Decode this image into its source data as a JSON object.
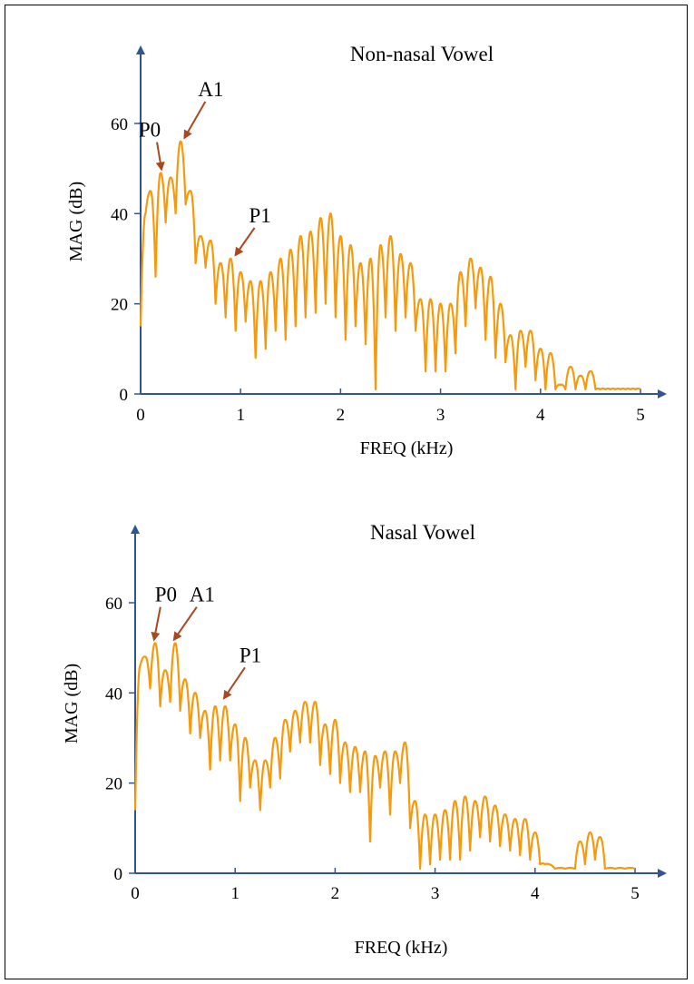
{
  "colors": {
    "spectrum": "#F59A0C",
    "axis": "#2F5597",
    "arrow": "#A8481F",
    "frame": "#000000"
  },
  "chart_data": [
    {
      "type": "line",
      "title": "Non-nasal Vowel",
      "xlabel": "FREQ (kHz)",
      "ylabel": "MAG (dB)",
      "xlim": [
        0,
        5
      ],
      "ylim": [
        0,
        60
      ],
      "xticks": [
        "0",
        "1",
        "2",
        "3",
        "4",
        "5"
      ],
      "yticks": [
        "0",
        "20",
        "40",
        "60"
      ],
      "grid": false,
      "annotations": [
        {
          "label": "P0",
          "x": 0.2,
          "y": 49
        },
        {
          "label": "A1",
          "x": 0.43,
          "y": 56
        },
        {
          "label": "P1",
          "x": 0.94,
          "y": 30
        }
      ],
      "series": [
        {
          "x": [
            0,
            0.05,
            0.1,
            0.15,
            0.2,
            0.25,
            0.3,
            0.35,
            0.4,
            0.45,
            0.5,
            0.55,
            0.6,
            0.65,
            0.7,
            0.75,
            0.8,
            0.85,
            0.9,
            0.95,
            1.0,
            1.05,
            1.1,
            1.15,
            1.2,
            1.25,
            1.3,
            1.35,
            1.4,
            1.45,
            1.5,
            1.55,
            1.6,
            1.65,
            1.7,
            1.75,
            1.8,
            1.85,
            1.9,
            1.95,
            2.0,
            2.05,
            2.1,
            2.15,
            2.2,
            2.25,
            2.3,
            2.35,
            2.4,
            2.45,
            2.5,
            2.55,
            2.6,
            2.65,
            2.7,
            2.75,
            2.8,
            2.85,
            2.9,
            2.95,
            3.0,
            3.05,
            3.1,
            3.15,
            3.2,
            3.25,
            3.3,
            3.35,
            3.4,
            3.45,
            3.5,
            3.55,
            3.6,
            3.65,
            3.7,
            3.75,
            3.8,
            3.85,
            3.9,
            3.95,
            4.0,
            4.05,
            4.1,
            4.15,
            4.2,
            4.25,
            4.3,
            4.35,
            4.4,
            4.45,
            4.5,
            4.55,
            4.6,
            4.65,
            4.7,
            4.75,
            4.8,
            4.85,
            4.9,
            4.95,
            5.0
          ],
          "y": [
            15,
            40,
            45,
            26,
            49,
            38,
            48,
            40,
            56,
            42,
            45,
            29,
            35,
            28,
            34,
            20,
            29,
            17,
            30,
            14,
            27,
            16,
            25,
            8,
            25,
            10,
            27,
            14,
            30,
            12,
            32,
            15,
            35,
            17,
            36,
            18,
            39,
            20,
            40,
            17,
            35,
            12,
            33,
            15,
            29,
            11,
            30,
            1,
            33,
            17,
            35,
            14,
            31,
            17,
            29,
            14,
            21,
            5,
            21,
            5,
            20,
            5,
            20,
            9,
            27,
            15,
            30,
            19,
            28,
            12,
            26,
            8,
            20,
            7,
            13,
            1,
            14,
            6,
            14,
            3,
            10,
            1,
            9,
            1,
            2,
            1,
            6,
            1,
            4,
            1,
            5,
            1,
            1,
            1,
            1,
            1,
            1,
            1,
            1,
            1,
            1
          ]
        }
      ]
    },
    {
      "type": "line",
      "title": "Nasal Vowel",
      "xlabel": "FREQ (kHz)",
      "ylabel": "MAG (dB)",
      "xlim": [
        0,
        5
      ],
      "ylim": [
        0,
        60
      ],
      "xticks": [
        "0",
        "1",
        "2",
        "3",
        "4",
        "5"
      ],
      "yticks": [
        "0",
        "20",
        "40",
        "60"
      ],
      "grid": false,
      "annotations": [
        {
          "label": "P0",
          "x": 0.18,
          "y": 51
        },
        {
          "label": "A1",
          "x": 0.38,
          "y": 51
        },
        {
          "label": "P1",
          "x": 0.88,
          "y": 38
        }
      ],
      "series": [
        {
          "x": [
            0,
            0.05,
            0.1,
            0.15,
            0.2,
            0.25,
            0.3,
            0.35,
            0.4,
            0.45,
            0.5,
            0.55,
            0.6,
            0.65,
            0.7,
            0.75,
            0.8,
            0.85,
            0.9,
            0.95,
            1.0,
            1.05,
            1.1,
            1.15,
            1.2,
            1.25,
            1.3,
            1.35,
            1.4,
            1.45,
            1.5,
            1.55,
            1.6,
            1.65,
            1.7,
            1.75,
            1.8,
            1.85,
            1.9,
            1.95,
            2.0,
            2.05,
            2.1,
            2.15,
            2.2,
            2.25,
            2.3,
            2.35,
            2.4,
            2.45,
            2.5,
            2.55,
            2.6,
            2.65,
            2.7,
            2.75,
            2.8,
            2.85,
            2.9,
            2.95,
            3.0,
            3.05,
            3.1,
            3.15,
            3.2,
            3.25,
            3.3,
            3.35,
            3.4,
            3.45,
            3.5,
            3.55,
            3.6,
            3.65,
            3.7,
            3.75,
            3.8,
            3.85,
            3.9,
            3.95,
            4.0,
            4.05,
            4.1,
            4.2,
            4.3,
            4.4,
            4.45,
            4.5,
            4.55,
            4.6,
            4.65,
            4.7,
            4.8,
            4.9,
            5.0
          ],
          "y": [
            14,
            46,
            48,
            41,
            51,
            37,
            45,
            38,
            51,
            36,
            43,
            31,
            40,
            30,
            36,
            23,
            37,
            25,
            37,
            25,
            33,
            16,
            30,
            19,
            25,
            14,
            25,
            19,
            30,
            21,
            34,
            27,
            36,
            29,
            38,
            29,
            38,
            24,
            33,
            22,
            34,
            20,
            29,
            18,
            28,
            18,
            27,
            7,
            26,
            19,
            27,
            13,
            27,
            20,
            29,
            10,
            16,
            1,
            13,
            2,
            13,
            3,
            14,
            3,
            16,
            3,
            17,
            5,
            16,
            8,
            17,
            7,
            15,
            6,
            13,
            5,
            12,
            4,
            12,
            3,
            9,
            2,
            2,
            1,
            1,
            1,
            7,
            2,
            9,
            3,
            8,
            1,
            1,
            1,
            1
          ]
        }
      ]
    }
  ]
}
